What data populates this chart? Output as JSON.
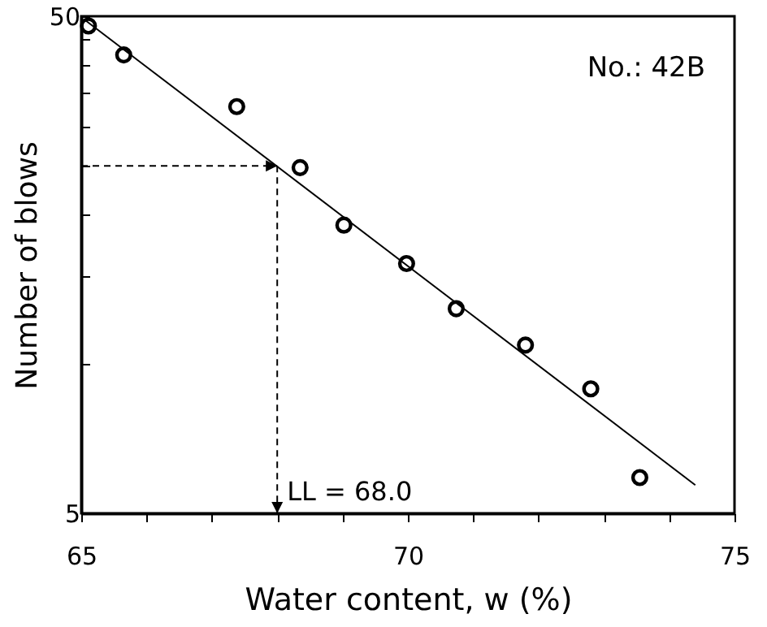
{
  "chart_data": {
    "type": "scatter",
    "xlabel": "Water content, w (%)",
    "ylabel": "Number of blows",
    "series": [
      {
        "color": "#000000",
        "marker": "circle",
        "x": [
          65.11,
          65.65,
          67.38,
          68.35,
          69.02,
          69.98,
          70.74,
          71.8,
          72.8,
          73.55
        ],
        "values": [
          47.8,
          41.8,
          32.9,
          24.8,
          19.0,
          15.9,
          12.9,
          10.9,
          8.9,
          5.9
        ]
      },
      {
        "type": "line",
        "color": "#000000",
        "marker": "none",
        "line_style": "solid",
        "x": [
          65.05,
          74.4
        ],
        "values": [
          49.2,
          5.7
        ]
      }
    ],
    "xlim": [
      65,
      75
    ],
    "ylim": [
      5,
      50
    ],
    "log": true,
    "xticks": [
      65,
      {
        "value": 66,
        "label": null
      },
      {
        "value": 67,
        "label": null
      },
      {
        "value": 68,
        "label": null
      },
      {
        "value": 69,
        "label": null
      },
      70,
      {
        "value": 71,
        "label": null
      },
      {
        "value": 72,
        "label": null
      },
      {
        "value": 73,
        "label": null
      },
      {
        "value": 74,
        "label": null
      },
      75
    ],
    "yticks": [
      5,
      {
        "value": 10,
        "label": null
      },
      {
        "value": 15,
        "label": null
      },
      {
        "value": 20,
        "label": null
      },
      {
        "value": 25,
        "label": null
      },
      {
        "value": 30,
        "label": null
      },
      {
        "value": 35,
        "label": null
      },
      {
        "value": 40,
        "label": null
      },
      {
        "value": 45,
        "label": null
      },
      50
    ],
    "grid": false,
    "annotations": [
      {
        "text": "LL = 68.0",
        "x": 68,
        "y": 25
      },
      "No.: 42B"
    ]
  }
}
